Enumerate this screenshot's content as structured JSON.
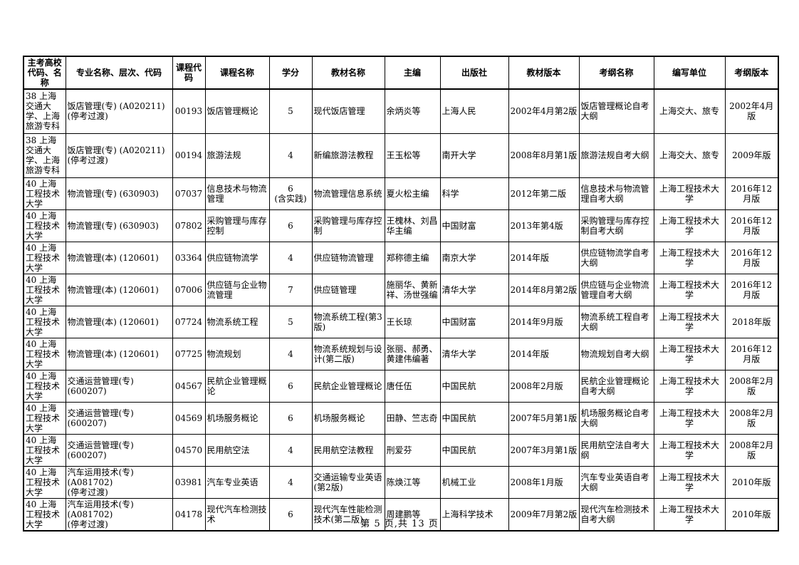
{
  "page": {
    "footer": "第 5 页,共 13 页"
  },
  "table": {
    "headers": [
      "主考高校代码、名称",
      "专业名称、层次、代码",
      "课程代码",
      "课程名称",
      "学分",
      "教材名称",
      "主编",
      "出版社",
      "教材版本",
      "考纲名称",
      "编写单位",
      "考纲版本"
    ],
    "rows": [
      [
        "38 上海交通大学、上海旅游专科",
        "饭店管理(专) (A020211)\n(停考过渡)",
        "00193",
        "饭店管理概论",
        "5",
        "现代饭店管理",
        "余炳炎等",
        "上海人民",
        "2002年4月第2版",
        "饭店管理概论自考大纲",
        "上海交大、旅专",
        "2002年4月版"
      ],
      [
        "38 上海交通大学、上海旅游专科",
        "饭店管理(专) (A020211)\n(停考过渡)",
        "00194",
        "旅游法规",
        "4",
        "新编旅游法教程",
        "王玉松等",
        "南开大学",
        "2008年8月第1版",
        "旅游法规自考大纲",
        "上海交大、旅专",
        "2009年版"
      ],
      [
        "40 上海工程技术大学",
        "物流管理(专) (630903)",
        "07037",
        "信息技术与物流管理",
        "6\n(含实践)",
        "物流管理信息系统",
        "夏火松主编",
        "科学",
        "2012年第二版",
        "信息技术与物流管理自考大纲",
        "上海工程技术大学",
        "2016年12月版"
      ],
      [
        "40 上海工程技术大学",
        "物流管理(专) (630903)",
        "07802",
        "采购管理与库存控制",
        "6",
        "采购管理与库存控制",
        "王槐林、刘昌华主编",
        "中国财富",
        "2013年第4版",
        "采购管理与库存控制自考大纲",
        "上海工程技术大学",
        "2016年12月版"
      ],
      [
        "40 上海工程技术大学",
        "物流管理(本) (120601)",
        "03364",
        "供应链物流学",
        "4",
        "供应链物流管理",
        "郑称德主编",
        "南京大学",
        "2014年版",
        "供应链物流学自考大纲",
        "上海工程技术大学",
        "2016年12月版"
      ],
      [
        "40 上海工程技术大学",
        "物流管理(本) (120601)",
        "07006",
        "供应链与企业物流管理",
        "7",
        "供应链管理",
        "施丽华、黄新祥、汤世强编",
        "清华大学",
        "2014年8月第2版",
        "供应链与企业物流管理自考大纲",
        "上海工程技术大学",
        "2016年12月版"
      ],
      [
        "40 上海工程技术大学",
        "物流管理(本) (120601)",
        "07724",
        "物流系统工程",
        "5",
        "物流系统工程(第3版)",
        "王长琼",
        "中国财富",
        "2014年9月版",
        "物流系统工程自考大纲",
        "上海工程技术大学",
        "2018年版"
      ],
      [
        "40 上海工程技术大学",
        "物流管理(本) (120601)",
        "07725",
        "物流规划",
        "4",
        "物流系统规划与设计(第二版)",
        "张丽、郝勇、黄建伟编著",
        "清华大学",
        "2014年版",
        "物流规划自考大纲",
        "上海工程技术大学",
        "2016年12月版"
      ],
      [
        "40 上海工程技术大学",
        "交通运营管理(专)\n(600207)",
        "04567",
        "民航企业管理概论",
        "6",
        "民航企业管理概论",
        "唐任伍",
        "中国民航",
        "2008年2月版",
        "民航企业管理概论自考大纲",
        "上海工程技术大学",
        "2008年2月版"
      ],
      [
        "40 上海工程技术大学",
        "交通运营管理(专)\n(600207)",
        "04569",
        "机场服务概论",
        "6",
        "机场服务概论",
        "田静、竺志奇",
        "中国民航",
        "2007年5月第1版",
        "机场服务概论自考大纲",
        "上海工程技术大学",
        "2008年2月版"
      ],
      [
        "40 上海工程技术大学",
        "交通运营管理(专)\n(600207)",
        "04570",
        "民用航空法",
        "4",
        "民用航空法教程",
        "刑爱芬",
        "中国民航",
        "2007年3月第1版",
        "民用航空法自考大纲",
        "上海工程技术大学",
        "2008年2月版"
      ],
      [
        "40 上海工程技术大学",
        "汽车运用技术(专)\n(A081702)\n(停考过渡)",
        "03981",
        "汽车专业英语",
        "4",
        "交通运输专业英语(第2版)",
        "陈焕江等",
        "机械工业",
        "2008年1月版",
        "汽车专业英语自考大纲",
        "上海工程技术大学",
        "2010年版"
      ],
      [
        "40 上海工程技术大学",
        "汽车运用技术(专)\n(A081702)\n(停考过渡)",
        "04178",
        "现代汽车检测技术",
        "6",
        "现代汽车性能检测技术(第二版)",
        "周建鹏等",
        "上海科学技术",
        "2009年7月第2版",
        "现代汽车检测技术自考大纲",
        "上海工程技术大学",
        "2010年版"
      ]
    ]
  }
}
